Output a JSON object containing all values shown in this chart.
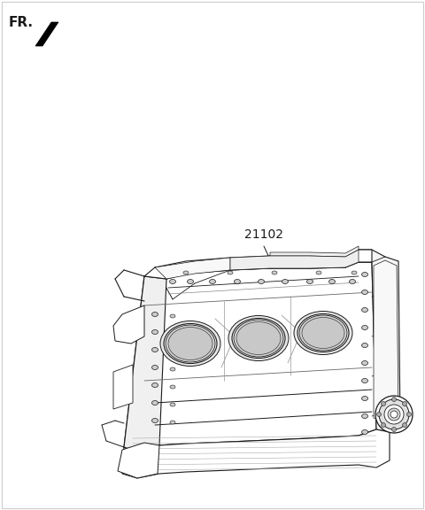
{
  "bg_color": "#ffffff",
  "fr_label": "FR.",
  "part_number": "21102",
  "line_color": "#1a1a1a",
  "fig_width": 4.8,
  "fig_height": 5.76,
  "dpi": 100,
  "border_color": "#cccccc"
}
